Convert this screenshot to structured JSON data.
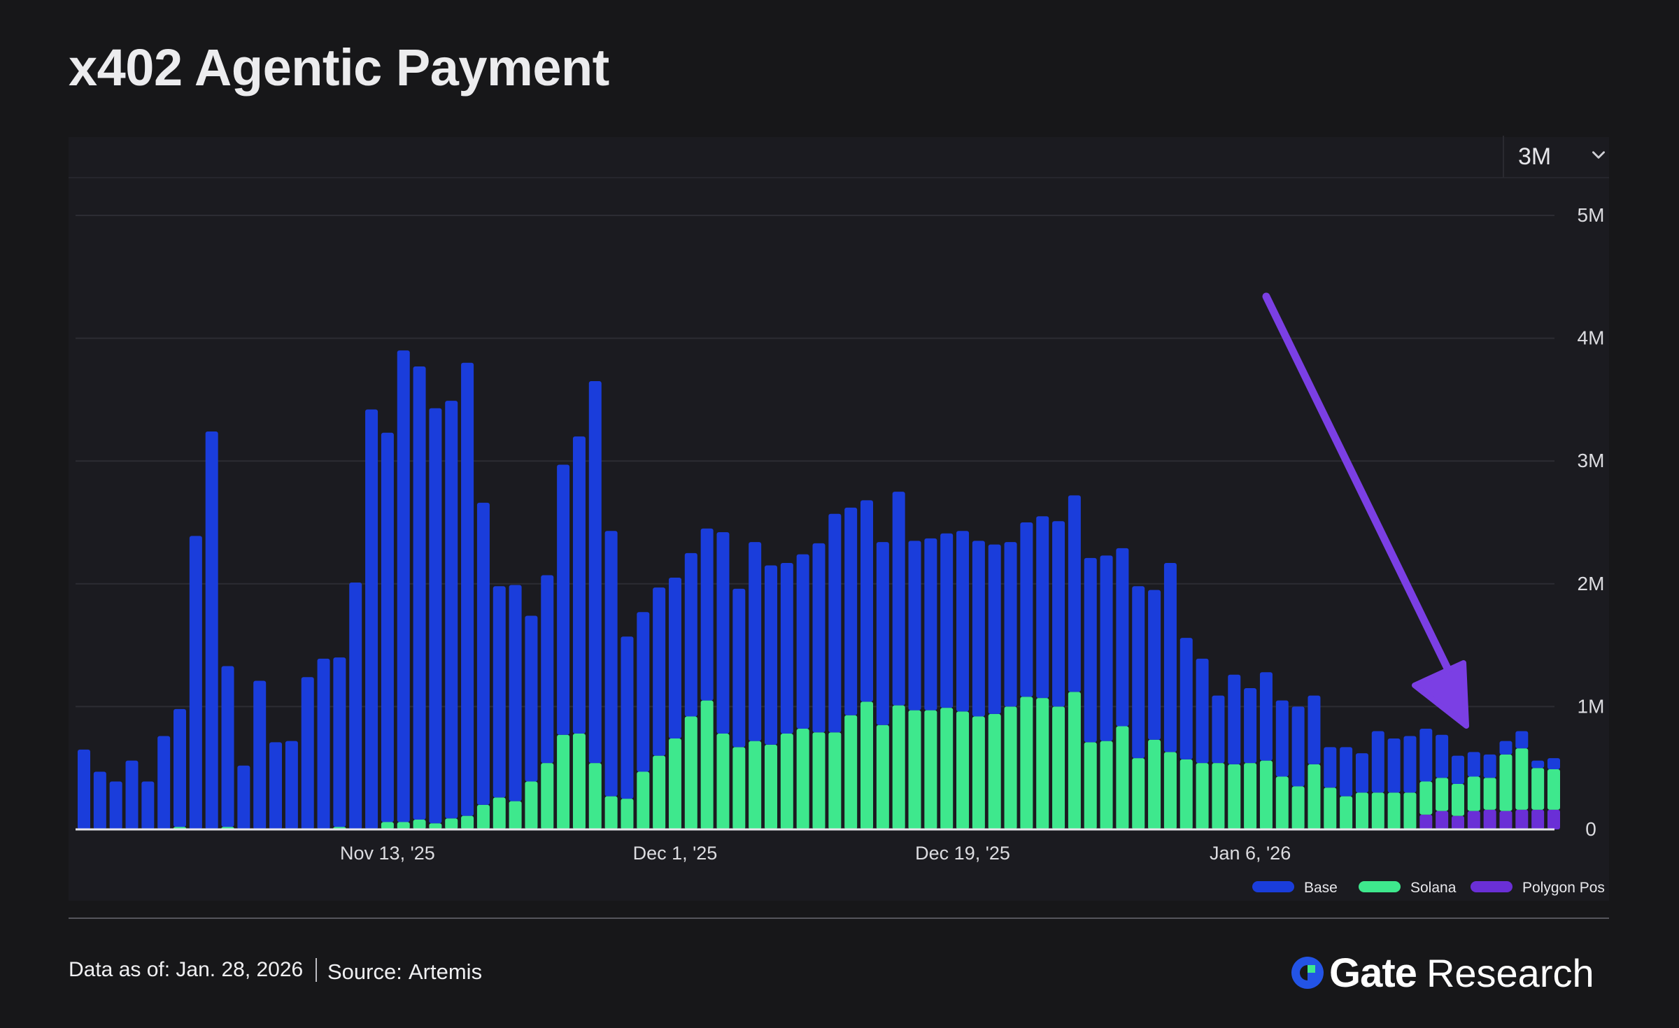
{
  "title": "x402 Agentic Payment",
  "range_selector": {
    "value": "3M",
    "icon": "chevron-down-icon"
  },
  "footer": {
    "data_as_of": "Data as of: Jan. 28, 2026",
    "source_label": "Source:",
    "source_value": "Artemis"
  },
  "brand": {
    "name": "Gate",
    "sub": "Research",
    "icon": "gate-logo-icon"
  },
  "chart_data": {
    "type": "bar",
    "stacked": true,
    "title": "",
    "xlabel": "",
    "ylabel": "",
    "ylim": [
      0,
      5000000
    ],
    "y_axis_position": "right",
    "y_ticks": [
      0,
      1000000,
      2000000,
      3000000,
      4000000,
      5000000
    ],
    "y_tick_labels": [
      "0",
      "1M",
      "2M",
      "3M",
      "4M",
      "5M"
    ],
    "grid": true,
    "legend_position": "bottom-right",
    "x_tick_labels": [
      {
        "label": "Nov 13, '25",
        "index": 19
      },
      {
        "label": "Dec 1, '25",
        "index": 37
      },
      {
        "label": "Dec 19, '25",
        "index": 55
      },
      {
        "label": "Jan 6, '26",
        "index": 73
      }
    ],
    "annotation": {
      "type": "arrow",
      "color": "#7b3fe4",
      "points_to": "Polygon Pos bars at end of period"
    },
    "series": [
      {
        "name": "Base",
        "color": "#1a3ddb",
        "values": [
          650000,
          470000,
          390000,
          560000,
          390000,
          760000,
          960000,
          2390000,
          3240000,
          1310000,
          520000,
          1210000,
          710000,
          720000,
          1240000,
          1390000,
          1380000,
          2010000,
          3420000,
          3170000,
          3840000,
          3690000,
          3380000,
          3400000,
          3690000,
          2460000,
          1720000,
          1760000,
          1350000,
          1530000,
          2200000,
          2420000,
          3110000,
          2160000,
          1320000,
          1300000,
          1370000,
          1310000,
          1330000,
          1400000,
          1640000,
          1290000,
          1620000,
          1460000,
          1390000,
          1420000,
          1540000,
          1780000,
          1690000,
          1640000,
          1490000,
          1740000,
          1380000,
          1400000,
          1420000,
          1470000,
          1430000,
          1380000,
          1340000,
          1420000,
          1480000,
          1510000,
          1600000,
          1500000,
          1510000,
          1450000,
          1400000,
          1220000,
          1540000,
          990000,
          850000,
          550000,
          730000,
          610000,
          720000,
          620000,
          650000,
          560000,
          330000,
          400000,
          320000,
          500000,
          440000,
          460000,
          430000,
          350000,
          230000,
          200000,
          190000,
          110000,
          140000,
          60000,
          90000
        ]
      },
      {
        "name": "Solana",
        "color": "#3ee88d",
        "values": [
          0,
          0,
          0,
          0,
          0,
          0,
          20000,
          0,
          0,
          20000,
          0,
          0,
          0,
          0,
          0,
          0,
          20000,
          0,
          0,
          60000,
          60000,
          80000,
          50000,
          90000,
          110000,
          200000,
          260000,
          230000,
          390000,
          540000,
          770000,
          780000,
          540000,
          270000,
          250000,
          470000,
          600000,
          740000,
          920000,
          1050000,
          780000,
          670000,
          720000,
          690000,
          780000,
          820000,
          790000,
          790000,
          930000,
          1040000,
          850000,
          1010000,
          970000,
          970000,
          990000,
          960000,
          920000,
          940000,
          1000000,
          1080000,
          1070000,
          1000000,
          1120000,
          710000,
          720000,
          840000,
          580000,
          730000,
          630000,
          570000,
          540000,
          540000,
          530000,
          540000,
          560000,
          430000,
          350000,
          530000,
          340000,
          270000,
          300000,
          300000,
          300000,
          300000,
          270000,
          270000,
          260000,
          280000,
          260000,
          460000,
          500000,
          340000,
          330000
        ]
      },
      {
        "name": "Polygon Pos",
        "color": "#6a2fd6",
        "values": [
          0,
          0,
          0,
          0,
          0,
          0,
          0,
          0,
          0,
          0,
          0,
          0,
          0,
          0,
          0,
          0,
          0,
          0,
          0,
          0,
          0,
          0,
          0,
          0,
          0,
          0,
          0,
          0,
          0,
          0,
          0,
          0,
          0,
          0,
          0,
          0,
          0,
          0,
          0,
          0,
          0,
          0,
          0,
          0,
          0,
          0,
          0,
          0,
          0,
          0,
          0,
          0,
          0,
          0,
          0,
          0,
          0,
          0,
          0,
          0,
          0,
          0,
          0,
          0,
          0,
          0,
          0,
          0,
          0,
          0,
          0,
          0,
          0,
          0,
          0,
          0,
          0,
          0,
          0,
          0,
          0,
          0,
          0,
          0,
          120000,
          150000,
          110000,
          150000,
          160000,
          150000,
          160000,
          160000,
          160000
        ]
      }
    ]
  }
}
